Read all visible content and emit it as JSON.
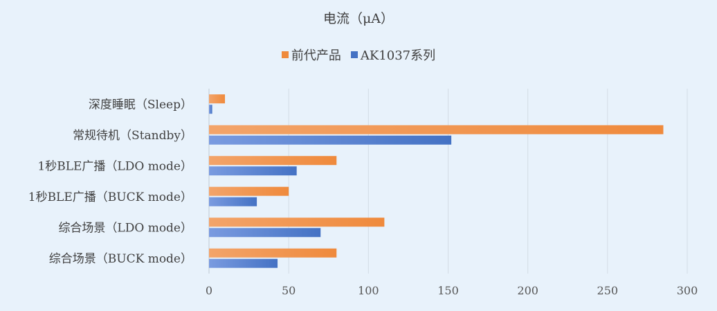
{
  "chart_data": {
    "type": "bar",
    "orientation": "horizontal",
    "title": "电流（μA）",
    "categories": [
      "深度睡眠（Sleep）",
      "常规待机（Standby）",
      "1秒BLE广播（LDO mode）",
      "1秒BLE广播（BUCK mode）",
      "综合场景（LDO mode）",
      "综合场景（BUCK mode）"
    ],
    "series": [
      {
        "name": "前代产品",
        "color": "#ef8a3c",
        "values": [
          10,
          285,
          80,
          50,
          110,
          80
        ]
      },
      {
        "name": "AK1037系列",
        "color": "#4472c4",
        "values": [
          2,
          152,
          55,
          30,
          70,
          43
        ]
      }
    ],
    "xlim": [
      0,
      300
    ],
    "xticks": [
      "0",
      "50",
      "100",
      "150",
      "200",
      "250",
      "300"
    ],
    "grid": true,
    "legend_position": "top"
  }
}
